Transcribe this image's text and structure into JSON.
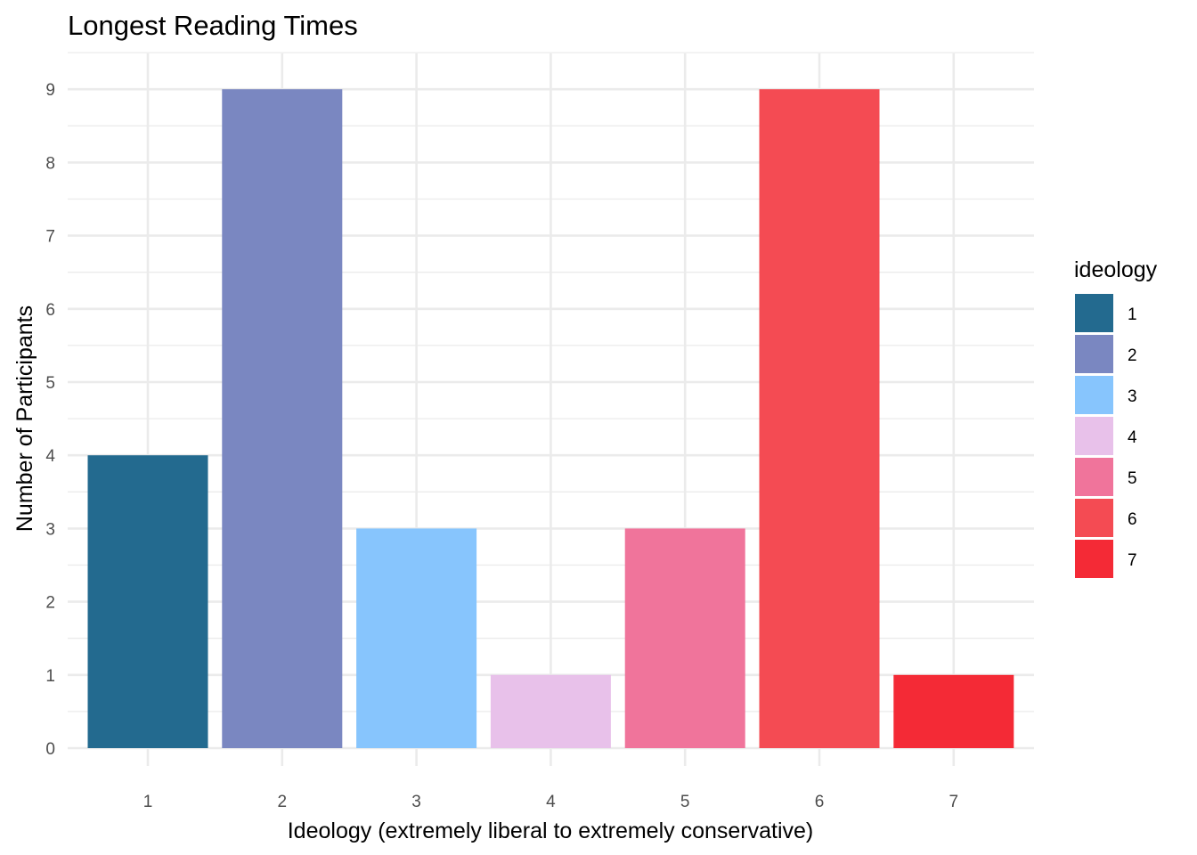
{
  "chart_data": {
    "type": "bar",
    "title": "Longest Reading Times",
    "xlabel": "Ideology (extremely liberal to extremely conservative)",
    "ylabel": "Number of Participants",
    "categories": [
      "1",
      "2",
      "3",
      "4",
      "5",
      "6",
      "7"
    ],
    "values": [
      4,
      9,
      3,
      1,
      3,
      9,
      1
    ],
    "colors": [
      "#236A8F",
      "#7A87C1",
      "#87C5FD",
      "#E8C1EA",
      "#F0749B",
      "#F44B53",
      "#F42A36"
    ],
    "ylim": [
      0,
      9.5
    ],
    "yticks": [
      "0",
      "1",
      "2",
      "3",
      "4",
      "5",
      "6",
      "7",
      "8",
      "9"
    ],
    "grid": true,
    "legend": {
      "title": "ideology",
      "position": "right",
      "entries": [
        "1",
        "2",
        "3",
        "4",
        "5",
        "6",
        "7"
      ]
    }
  }
}
